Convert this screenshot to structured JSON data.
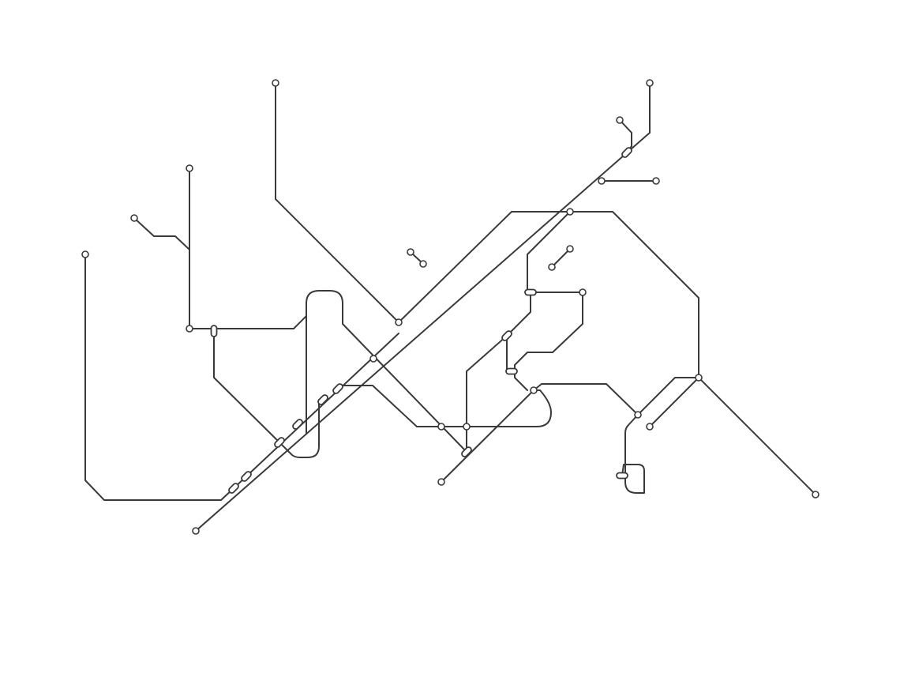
{
  "map": {
    "style": "schematic transit network diagram, unlabeled",
    "colors": {
      "line": "#3a3a3a",
      "station_fill": "#ffffff",
      "station_stroke": "#3a3a3a",
      "background": "#ffffff"
    },
    "marker_types": [
      "terminal-stop-icon",
      "interchange-station-icon"
    ],
    "labels": []
  }
}
